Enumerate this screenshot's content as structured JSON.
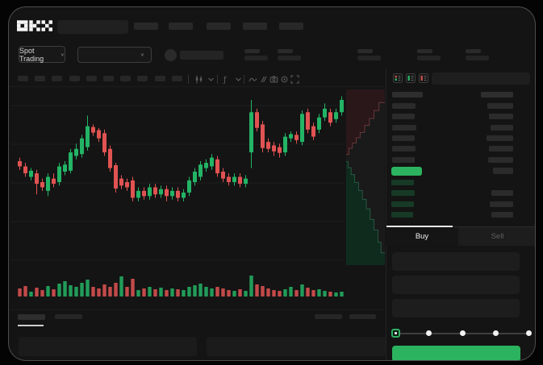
{
  "brand": "OKX",
  "colors": {
    "up": "#23b465",
    "down": "#e05352",
    "accent_green": "#2cb35f",
    "bid_row_green": "#163a26",
    "depth_ask_fill": "#2a171a",
    "depth_ask_line": "#8c4a48",
    "depth_bid_fill": "#0f2b1e",
    "depth_bid_line": "#317455"
  },
  "nav": {
    "placeholder_count": 5
  },
  "trade_bar": {
    "market_selector": "Spot Trading",
    "chevron": "∨",
    "stat_group_count": 5
  },
  "chart_toolbar": {
    "timeframe_placeholder_count": 10,
    "icons": [
      "candle-style-icon",
      "chevron-down-icon",
      "indicators-icon",
      "chevron-down-icon",
      "line-tool-icon",
      "compare-icon",
      "camera-icon",
      "settings-icon",
      "fullscreen-icon"
    ]
  },
  "orderbook": {
    "view_icons": [
      "book-both-icon",
      "book-bids-icon",
      "book-asks-icon"
    ],
    "header": {
      "price_w": 38,
      "amount_w": 40
    },
    "asks": [
      {
        "pw": 29,
        "aw": 32
      },
      {
        "pw": 28,
        "aw": 30
      },
      {
        "pw": 30,
        "aw": 28
      },
      {
        "pw": 28,
        "aw": 33
      },
      {
        "pw": 29,
        "aw": 30
      },
      {
        "pw": 28,
        "aw": 31
      }
    ],
    "last_price_bar": {
      "w": 38,
      "aw": 25
    },
    "bids": [
      {
        "pw": 28,
        "aw": 0
      },
      {
        "pw": 29,
        "aw": 27
      },
      {
        "pw": 28,
        "aw": 29
      },
      {
        "pw": 27,
        "aw": 27
      }
    ]
  },
  "side_tabs": {
    "buy": "Buy",
    "sell": "Sell"
  },
  "trade_form": {
    "field_count": 3,
    "slider": {
      "stops_percent": [
        0,
        25,
        50,
        75,
        100
      ],
      "active_stop": 0
    }
  },
  "bottom_panel": {
    "left_tab_count": 2,
    "active_tab_index": 0,
    "right_placeholder_count": 2,
    "row_count": 2
  },
  "chart_data": {
    "type": "candlestick",
    "title": "",
    "price_scale": [
      0,
      100
    ],
    "note": "Prices normalized 0-100 (axis labels are redacted in source UI). Candles are [open, close, high, low, volume_px].",
    "grid": true,
    "candles": [
      [
        59,
        56,
        61,
        54,
        10
      ],
      [
        56,
        52,
        58,
        50,
        13
      ],
      [
        50,
        53.5,
        55,
        48,
        6
      ],
      [
        52,
        46,
        54,
        40,
        11
      ],
      [
        47,
        44,
        49,
        42,
        8
      ],
      [
        42,
        50,
        52,
        39,
        13
      ],
      [
        49,
        46,
        52,
        44,
        9
      ],
      [
        47,
        56,
        58,
        45,
        16
      ],
      [
        53,
        57,
        59,
        51,
        19
      ],
      [
        53.5,
        64,
        66,
        52,
        14
      ],
      [
        62,
        66,
        69,
        60,
        12
      ],
      [
        63,
        72,
        74,
        61,
        17
      ],
      [
        67,
        79,
        85,
        65,
        21
      ],
      [
        78.5,
        75.3,
        80,
        73.5,
        12
      ],
      [
        76.7,
        72,
        78,
        70,
        10
      ],
      [
        75,
        64,
        77,
        62,
        15
      ],
      [
        66,
        55,
        68,
        53,
        12
      ],
      [
        56.7,
        43.3,
        58,
        41,
        17
      ],
      [
        49,
        45,
        51,
        43,
        25
      ],
      [
        47,
        44,
        49,
        42,
        12
      ],
      [
        48,
        38,
        50,
        36,
        22
      ],
      [
        38,
        42,
        44,
        36,
        8
      ],
      [
        42,
        39,
        44,
        37,
        10
      ],
      [
        39,
        44,
        46,
        37,
        12
      ],
      [
        44,
        40,
        46,
        38,
        9
      ],
      [
        40,
        43,
        45,
        38,
        11
      ],
      [
        43,
        39,
        45,
        36,
        8
      ],
      [
        39,
        42,
        44,
        37,
        10
      ],
      [
        42,
        38,
        44,
        36,
        9
      ],
      [
        38,
        41,
        43,
        36,
        8
      ],
      [
        41,
        48,
        50,
        39,
        12
      ],
      [
        47,
        53,
        55,
        45,
        14
      ],
      [
        50,
        57,
        59,
        48,
        16
      ],
      [
        55,
        58,
        60,
        53,
        12
      ],
      [
        56,
        61,
        63,
        54,
        10
      ],
      [
        60,
        52,
        62,
        50,
        12
      ],
      [
        53,
        49,
        55,
        47,
        10
      ],
      [
        50,
        47,
        52,
        45,
        8
      ],
      [
        47,
        50,
        52,
        45,
        7
      ],
      [
        50,
        46,
        52,
        44,
        9
      ],
      [
        46,
        49,
        51,
        44,
        7
      ],
      [
        64,
        87,
        94,
        55,
        26
      ],
      [
        87,
        78,
        89,
        76,
        15
      ],
      [
        80,
        66.5,
        82,
        64,
        13
      ],
      [
        70,
        66,
        72,
        64,
        10
      ],
      [
        68,
        64.6,
        70,
        62,
        8
      ],
      [
        67,
        63.7,
        69,
        61,
        7
      ],
      [
        64,
        73,
        75,
        62,
        9
      ],
      [
        72,
        74.5,
        76,
        70,
        12
      ],
      [
        74,
        71,
        76,
        69,
        8
      ],
      [
        70,
        86,
        88,
        68,
        15
      ],
      [
        87,
        77,
        89,
        75,
        11
      ],
      [
        79,
        73,
        81,
        71,
        8
      ],
      [
        77,
        84,
        86,
        75,
        9
      ],
      [
        84,
        89,
        92,
        82,
        7
      ],
      [
        87,
        81,
        89,
        79,
        6
      ],
      [
        83,
        87,
        89,
        81,
        5
      ],
      [
        87,
        94,
        96,
        85,
        6
      ]
    ],
    "volume_color_overrides": {
      "18": "up"
    },
    "depth": {
      "asks_boundary": [
        [
          0,
          0.37
        ],
        [
          0.07,
          0.37
        ],
        [
          0.07,
          0.335
        ],
        [
          0.16,
          0.335
        ],
        [
          0.16,
          0.305
        ],
        [
          0.26,
          0.305
        ],
        [
          0.26,
          0.275
        ],
        [
          0.36,
          0.275
        ],
        [
          0.36,
          0.245
        ],
        [
          0.48,
          0.245
        ],
        [
          0.48,
          0.205
        ],
        [
          0.6,
          0.205
        ],
        [
          0.6,
          0.165
        ],
        [
          0.72,
          0.165
        ],
        [
          0.72,
          0.12
        ],
        [
          0.85,
          0.12
        ],
        [
          0.85,
          0.075
        ],
        [
          1,
          0.075
        ]
      ],
      "bids_boundary": [
        [
          0,
          0.41
        ],
        [
          0.05,
          0.41
        ],
        [
          0.05,
          0.445
        ],
        [
          0.13,
          0.445
        ],
        [
          0.13,
          0.485
        ],
        [
          0.22,
          0.485
        ],
        [
          0.22,
          0.53
        ],
        [
          0.32,
          0.53
        ],
        [
          0.32,
          0.575
        ],
        [
          0.42,
          0.575
        ],
        [
          0.42,
          0.625
        ],
        [
          0.52,
          0.625
        ],
        [
          0.52,
          0.68
        ],
        [
          0.62,
          0.68
        ],
        [
          0.62,
          0.74
        ],
        [
          0.72,
          0.74
        ],
        [
          0.72,
          0.8
        ],
        [
          0.82,
          0.8
        ],
        [
          0.82,
          0.87
        ],
        [
          0.9,
          0.87
        ],
        [
          0.9,
          0.93
        ],
        [
          1,
          0.93
        ]
      ]
    }
  }
}
